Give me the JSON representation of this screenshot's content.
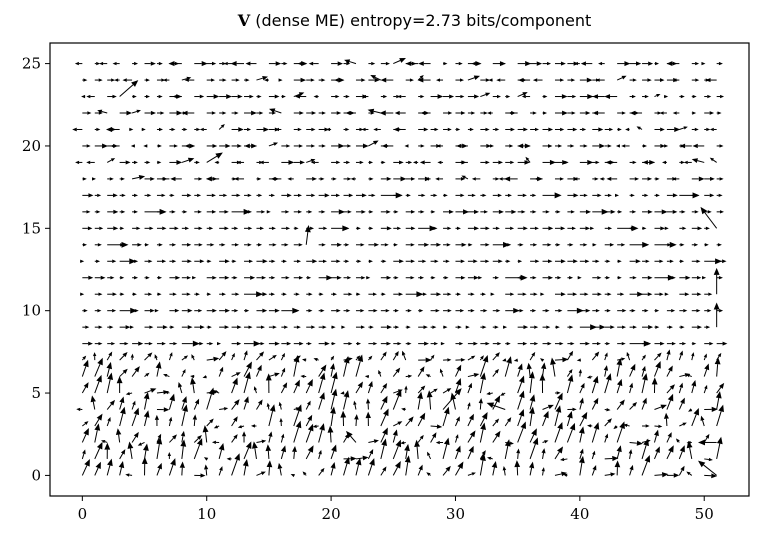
{
  "title": {
    "symbol": "V",
    "text": "(dense ME) entropy=2.73 bits/component"
  },
  "chart_data": {
    "type": "quiver",
    "title": "V (dense ME) entropy=2.73 bits/component",
    "xlabel": "",
    "ylabel": "",
    "xlim": [
      -2.6,
      53.6
    ],
    "ylim": [
      -1.25,
      26.25
    ],
    "xticks": [
      "0",
      "10",
      "20",
      "30",
      "40",
      "50"
    ],
    "yticks": [
      "0",
      "5",
      "10",
      "15",
      "20",
      "25"
    ],
    "grid": false,
    "legend": "none",
    "x_range": [
      0,
      51
    ],
    "y_range": [
      0,
      25
    ],
    "grid_spacing": 1,
    "regions": [
      {
        "name": "bottom",
        "y_range": [
          0,
          7
        ],
        "pattern": "mixed, mostly up-right diagonal arrows with large random variation"
      },
      {
        "name": "middle",
        "y_range": [
          8,
          17
        ],
        "pattern": "uniform rightward arrows, short"
      },
      {
        "name": "top",
        "y_range": [
          18,
          25
        ],
        "pattern": "horizontal arrows alternating left/right"
      }
    ],
    "notable_arrows": [
      {
        "x": 3,
        "y": 23,
        "u": 1.5,
        "v": 1.0
      },
      {
        "x": 10,
        "y": 19,
        "u": 1.3,
        "v": 0.6
      },
      {
        "x": 18,
        "y": 14,
        "u": 0.2,
        "v": 1.2
      },
      {
        "x": 51,
        "y": 15,
        "u": -1.3,
        "v": 1.3
      },
      {
        "x": 51,
        "y": 11,
        "u": 0.0,
        "v": 1.6
      },
      {
        "x": 51,
        "y": 9,
        "u": 0.0,
        "v": 1.5
      },
      {
        "x": 51,
        "y": 0,
        "u": -1.5,
        "v": 0.9
      },
      {
        "x": 51,
        "y": 2,
        "u": -1.5,
        "v": 0.0
      },
      {
        "x": 34,
        "y": 4,
        "u": -1.5,
        "v": 0.4
      },
      {
        "x": 29,
        "y": 4,
        "u": 1.5,
        "v": 1.3
      },
      {
        "x": 22,
        "y": 2,
        "u": -0.8,
        "v": 0.7
      }
    ],
    "colors": {
      "arrow": "#000000",
      "frame": "#000000"
    }
  }
}
